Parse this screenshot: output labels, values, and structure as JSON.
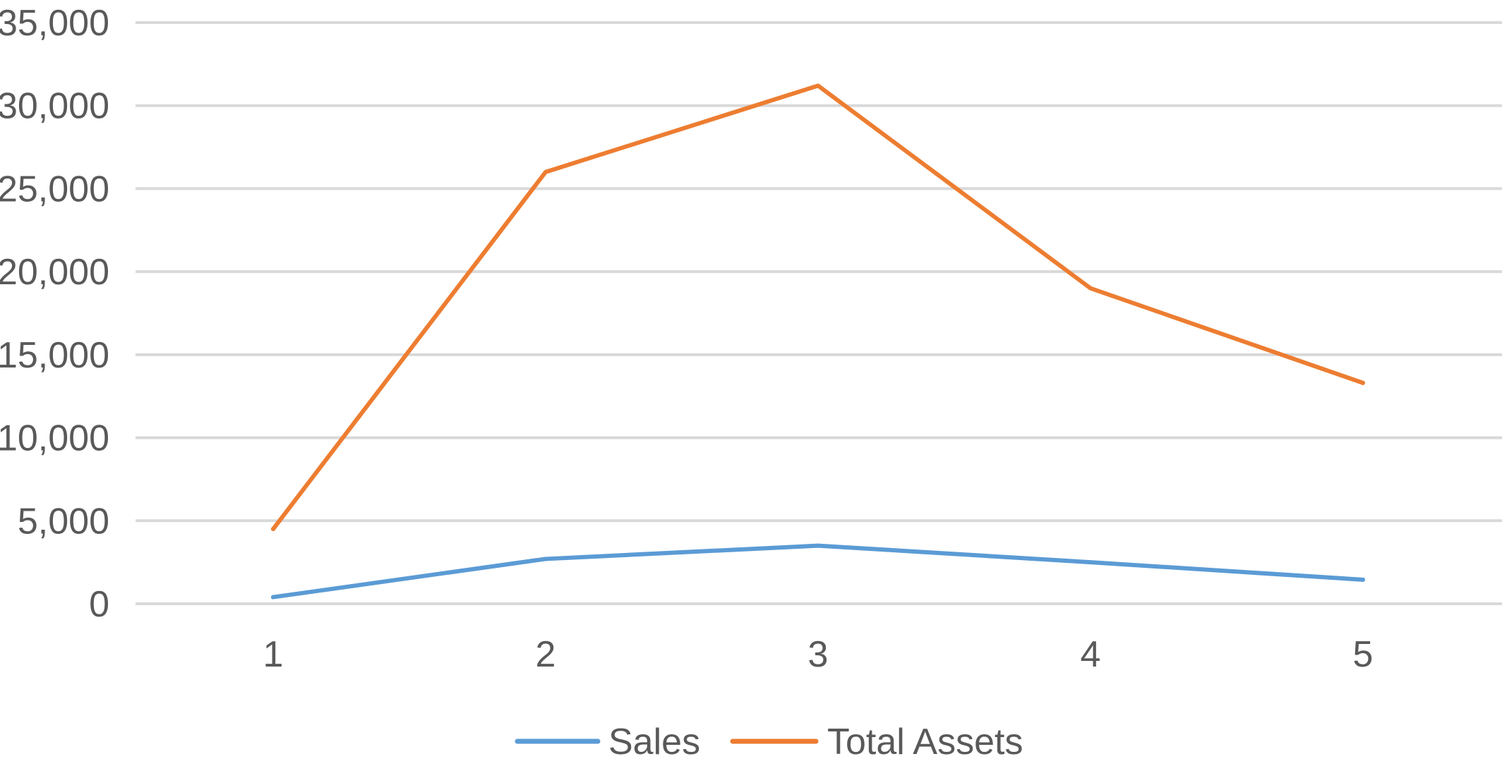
{
  "chart_data": {
    "type": "line",
    "title": "",
    "xlabel": "",
    "ylabel": "",
    "categories": [
      "1",
      "2",
      "3",
      "4",
      "5"
    ],
    "ylim": [
      0,
      35000
    ],
    "yticks": [
      0,
      5000,
      10000,
      15000,
      20000,
      25000,
      30000,
      35000
    ],
    "ytick_labels": [
      "0",
      "5,000",
      "10,000",
      "15,000",
      "20,000",
      "25,000",
      "30,000",
      "35,000"
    ],
    "grid": true,
    "legend_position": "bottom",
    "series": [
      {
        "name": "Sales",
        "color": "#5B9BD5",
        "values": [
          400,
          2700,
          3500,
          2500,
          1450
        ]
      },
      {
        "name": "Total Assets",
        "color": "#ED7D31",
        "values": [
          4500,
          26000,
          31200,
          19000,
          13300
        ]
      }
    ],
    "gridline_color": "#D9D9D9",
    "label_color": "#595959"
  }
}
